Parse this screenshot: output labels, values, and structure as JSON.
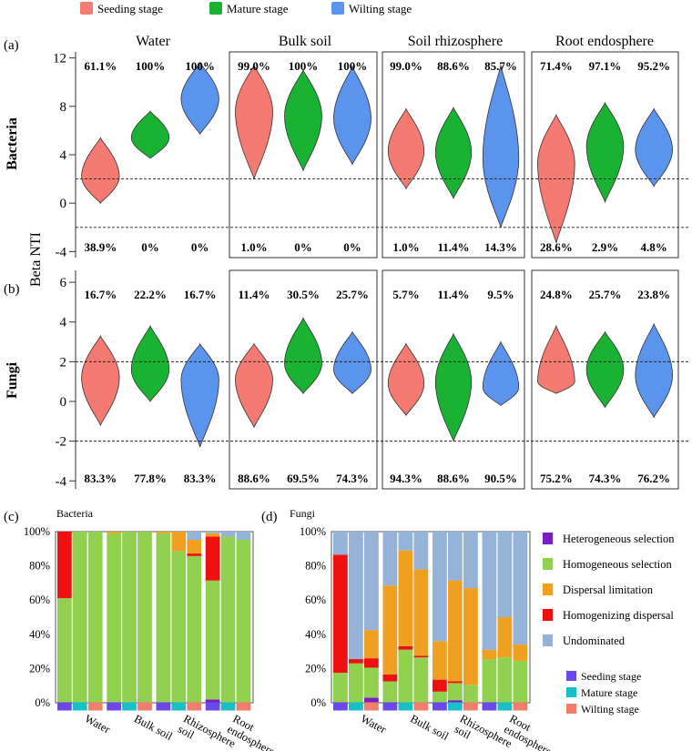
{
  "colors": {
    "seeding": "#f47a72",
    "mature": "#1ab233",
    "wilting": "#5b94ed",
    "heterogeneous_selection": "#7b1fc4",
    "homogeneous_selection": "#92d050",
    "dispersal_limitation": "#f0a020",
    "homogenizing_dispersal": "#ee1111",
    "undominated": "#95b3d7",
    "legend_seeding": "#6a49e8",
    "legend_mature": "#18bfc7",
    "legend_wilting": "#f07d6e"
  },
  "legend_top": {
    "items": [
      "Seeding stage",
      "Mature stage",
      "Wilting stage"
    ]
  },
  "panel_labels": {
    "a": "(a)",
    "b": "(b)",
    "c": "(c)",
    "d": "(d)"
  },
  "y_axis_label": "Beta NTI",
  "row_labels": {
    "bacteria": "Bacteria",
    "fungi": "Fungi"
  },
  "column_titles": [
    "Water",
    "Bulk soil",
    "Soil rhizosphere",
    "Root endosphere"
  ],
  "chart_data": [
    {
      "type": "violin",
      "panel": "(a)",
      "row": "Bacteria",
      "ylabel": "Beta NTI",
      "ylim": [
        -4.5,
        12.5
      ],
      "yticks": [
        -4,
        0,
        4,
        8,
        12
      ],
      "threshold_lines": [
        2,
        -2
      ],
      "stages": [
        "Seeding stage",
        "Mature stage",
        "Wilting stage"
      ],
      "panels": [
        {
          "title": "Water",
          "top_pct": [
            "61.1%",
            "100%",
            "100%"
          ],
          "bottom_pct": [
            "38.9%",
            "0%",
            "0%"
          ],
          "violins": [
            {
              "min": 0.0,
              "max": 5.4,
              "peak": 2.2
            },
            {
              "min": 3.7,
              "max": 7.6,
              "peak": 5.4
            },
            {
              "min": 5.7,
              "max": 11.6,
              "peak": 8.6
            }
          ]
        },
        {
          "title": "Bulk soil",
          "top_pct": [
            "99.0%",
            "100%",
            "100%"
          ],
          "bottom_pct": [
            "1.0%",
            "0%",
            "0%"
          ],
          "violins": [
            {
              "min": 2.0,
              "max": 11.4,
              "peak": 7.6
            },
            {
              "min": 2.7,
              "max": 11.0,
              "peak": 7.2
            },
            {
              "min": 3.2,
              "max": 11.3,
              "peak": 7.0
            }
          ]
        },
        {
          "title": "Soil rhizosphere",
          "top_pct": [
            "99.0%",
            "88.6%",
            "85.7%"
          ],
          "bottom_pct": [
            "1.0%",
            "11.4%",
            "14.3%"
          ],
          "violins": [
            {
              "min": 1.2,
              "max": 7.8,
              "peak": 4.3
            },
            {
              "min": 0.4,
              "max": 7.9,
              "peak": 4.2
            },
            {
              "min": -2.0,
              "max": 11.4,
              "peak": 3.7
            }
          ]
        },
        {
          "title": "Root endosphere",
          "top_pct": [
            "71.4%",
            "97.1%",
            "95.2%"
          ],
          "bottom_pct": [
            "28.6%",
            "2.9%",
            "4.8%"
          ],
          "violins": [
            {
              "min": -3.3,
              "max": 7.3,
              "peak": 3.3
            },
            {
              "min": 0.1,
              "max": 8.3,
              "peak": 4.7
            },
            {
              "min": 1.4,
              "max": 7.8,
              "peak": 4.4
            }
          ]
        }
      ]
    },
    {
      "type": "violin",
      "panel": "(b)",
      "row": "Fungi",
      "ylabel": "Beta NTI",
      "ylim": [
        -4.4,
        6.6
      ],
      "yticks": [
        -4,
        -2,
        0,
        2,
        4,
        6
      ],
      "threshold_lines": [
        2,
        -2
      ],
      "stages": [
        "Seeding stage",
        "Mature stage",
        "Wilting stage"
      ],
      "panels": [
        {
          "title": "Water",
          "top_pct": [
            "16.7%",
            "22.2%",
            "16.7%"
          ],
          "bottom_pct": [
            "83.3%",
            "77.8%",
            "83.3%"
          ],
          "violins": [
            {
              "min": -1.2,
              "max": 3.3,
              "peak": 1.2
            },
            {
              "min": 0.0,
              "max": 3.8,
              "peak": 1.6
            },
            {
              "min": -2.3,
              "max": 2.9,
              "peak": 1.1
            }
          ]
        },
        {
          "title": "Bulk soil",
          "top_pct": [
            "11.4%",
            "30.5%",
            "25.7%"
          ],
          "bottom_pct": [
            "88.6%",
            "69.5%",
            "74.3%"
          ],
          "violins": [
            {
              "min": -1.3,
              "max": 2.9,
              "peak": 1.1
            },
            {
              "min": 0.4,
              "max": 4.2,
              "peak": 1.9
            },
            {
              "min": 0.4,
              "max": 3.5,
              "peak": 1.6
            }
          ]
        },
        {
          "title": "Soil rhizosphere",
          "top_pct": [
            "5.7%",
            "11.4%",
            "9.5%"
          ],
          "bottom_pct": [
            "94.3%",
            "88.6%",
            "90.5%"
          ],
          "violins": [
            {
              "min": -0.7,
              "max": 2.9,
              "peak": 0.9
            },
            {
              "min": -2.0,
              "max": 3.4,
              "peak": 1.0
            },
            {
              "min": -0.2,
              "max": 3.0,
              "peak": 0.7
            }
          ]
        },
        {
          "title": "Root endosphere",
          "top_pct": [
            "24.8%",
            "25.7%",
            "23.8%"
          ],
          "bottom_pct": [
            "75.2%",
            "74.3%",
            "76.2%"
          ],
          "violins": [
            {
              "min": 0.4,
              "max": 3.8,
              "peak": 1.0
            },
            {
              "min": -0.3,
              "max": 3.5,
              "peak": 1.6
            },
            {
              "min": -0.8,
              "max": 3.9,
              "peak": 1.3
            }
          ]
        }
      ]
    },
    {
      "type": "stacked_bar",
      "panel": "(c)",
      "title": "Bacteria",
      "ylim": [
        0,
        100
      ],
      "yticks": [
        "0%",
        "20%",
        "40%",
        "60%",
        "80%",
        "100%"
      ],
      "groups": [
        "Water",
        "Bulk soil",
        "Rhizosphere soil",
        "Root endosphere"
      ],
      "stages": [
        "Seeding stage",
        "Mature stage",
        "Wilting stage"
      ],
      "segment_order": [
        "Heterogeneous selection",
        "Homogeneous selection",
        "Homogenizing dispersal",
        "Dispersal limitation",
        "Undominated"
      ],
      "bars": [
        [
          0,
          61.1,
          38.9,
          0,
          0
        ],
        [
          0,
          100,
          0,
          0,
          0
        ],
        [
          0,
          100,
          0,
          0,
          0
        ],
        [
          0,
          99.0,
          0,
          1.0,
          0
        ],
        [
          0,
          100,
          0,
          0,
          0
        ],
        [
          0,
          100,
          0,
          0,
          0
        ],
        [
          0,
          99.0,
          0,
          1.0,
          0
        ],
        [
          0,
          88.6,
          0,
          11.4,
          0
        ],
        [
          0,
          85.7,
          1.5,
          8.0,
          4.8
        ],
        [
          1.9,
          69.5,
          25.7,
          1.9,
          1.0
        ],
        [
          0,
          97.1,
          0,
          0,
          2.9
        ],
        [
          0,
          95.2,
          0,
          0,
          4.8
        ]
      ]
    },
    {
      "type": "stacked_bar",
      "panel": "(d)",
      "title": "Fungi",
      "ylim": [
        0,
        100
      ],
      "yticks": [
        "0%",
        "20%",
        "40%",
        "60%",
        "80%",
        "100%"
      ],
      "groups": [
        "Water",
        "Bulk soil",
        "Rhizosphere soil",
        "Root endosphere"
      ],
      "stages": [
        "Seeding stage",
        "Mature stage",
        "Wilting stage"
      ],
      "segment_order": [
        "Heterogeneous selection",
        "Homogeneous selection",
        "Homogenizing dispersal",
        "Dispersal limitation",
        "Undominated"
      ],
      "bars": [
        [
          0,
          17.5,
          69.0,
          0,
          13.5
        ],
        [
          0,
          23.0,
          2.5,
          0,
          74.5
        ],
        [
          3.0,
          17.5,
          5.5,
          16.5,
          57.5
        ],
        [
          0,
          12.5,
          4.0,
          52.0,
          31.5
        ],
        [
          0,
          31.0,
          2.0,
          56.0,
          11.0
        ],
        [
          0,
          26.5,
          1.0,
          50.5,
          22.0
        ],
        [
          0,
          6.5,
          7.0,
          22.5,
          64.0
        ],
        [
          1.5,
          10.0,
          1.0,
          59.0,
          28.5
        ],
        [
          0,
          10.5,
          0,
          56.5,
          33.0
        ],
        [
          0,
          25.5,
          0,
          5.5,
          69.0
        ],
        [
          0,
          26.5,
          0,
          23.5,
          50.0
        ],
        [
          0,
          24.5,
          0,
          9.5,
          66.0
        ]
      ]
    }
  ],
  "bar_group_labels": [
    "Water",
    "Bulk soil",
    "Rhizosphere\nsoil",
    "Root\nendosphere"
  ],
  "legend_right": {
    "process_items": [
      "Heterogeneous selection",
      "Homogeneous selection",
      "Dispersal  limitation",
      "Homogenizing dispersal",
      "Undominated"
    ],
    "stage_items": [
      "Seeding stage",
      "Mature stage",
      "Wilting stage"
    ]
  }
}
